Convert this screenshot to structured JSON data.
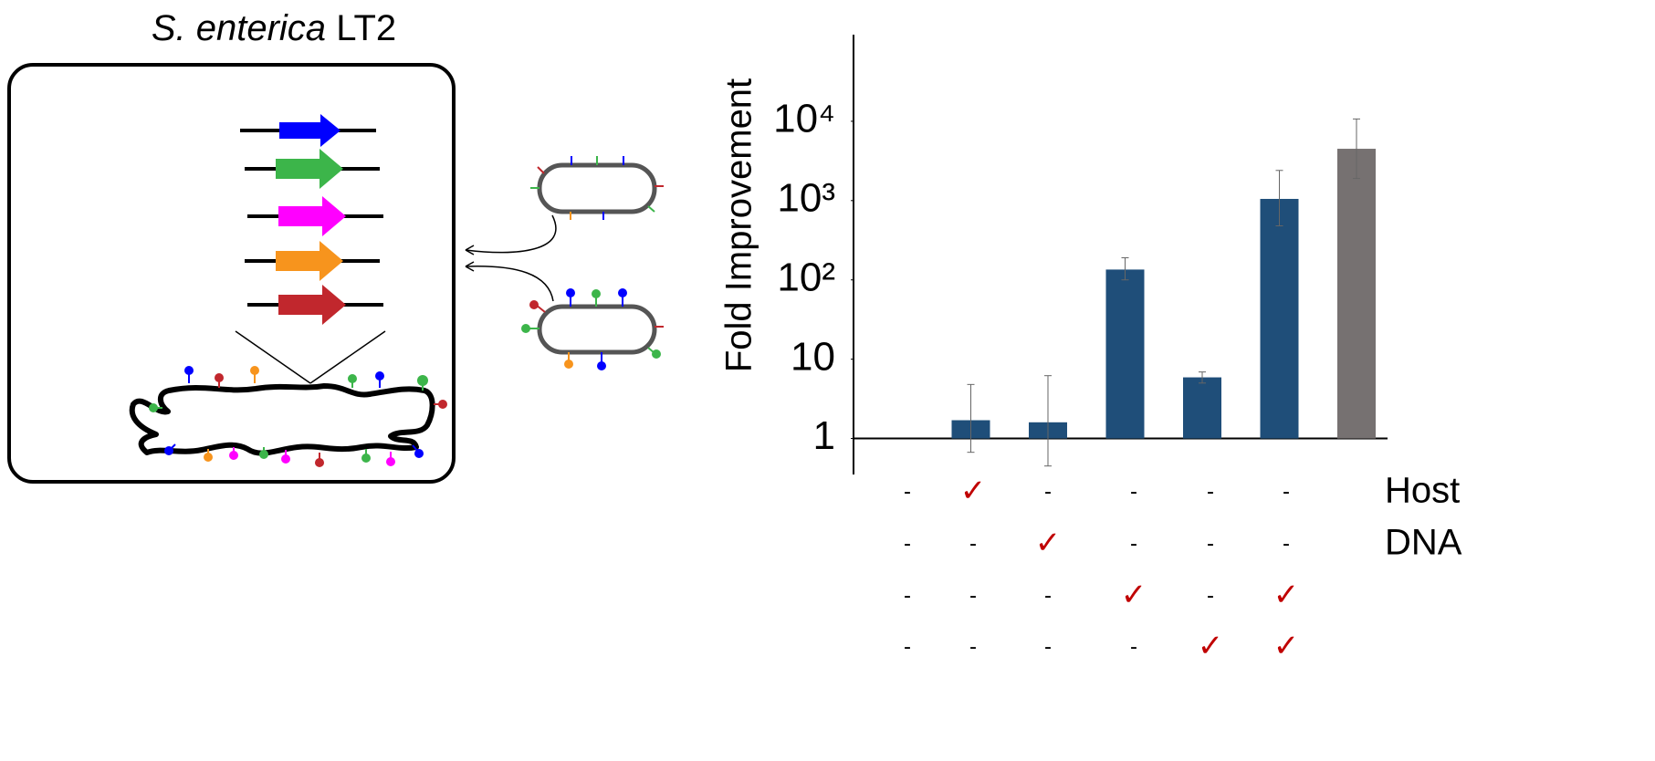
{
  "diagram": {
    "title_italic": "S. enterica",
    "title_rest": "LT2"
  },
  "chart_data": {
    "type": "bar",
    "log_y": true,
    "y_label": "Fold Improvement",
    "categories": [
      null,
      null,
      null,
      null,
      null,
      null,
      null
    ],
    "series": [
      {
        "values": [
          null,
          1.7,
          1.6,
          135,
          5.9,
          1050,
          4500
        ],
        "error_low": [
          null,
          0.67,
          0.45,
          100,
          5.0,
          480,
          1900
        ],
        "error_high": [
          null,
          4.8,
          6.2,
          190,
          6.9,
          2400,
          10700
        ],
        "colors": [
          "#1f4e79",
          "#1f4e79",
          "#1f4e79",
          "#1f4e79",
          "#1f4e79",
          "#1f4e79",
          "#767171"
        ]
      }
    ],
    "ylim": [
      0.3,
      100000
    ],
    "yticks": [
      1,
      10,
      {
        "value": 100,
        "label": "10²"
      },
      {
        "value": 1000,
        "label": "10³"
      },
      {
        "value": 10000,
        "label": "10⁴"
      }
    ],
    "conditions": [
      {
        "label": "Host",
        "marks": [
          "-",
          "✓",
          "-",
          "-",
          "-",
          "-"
        ]
      },
      {
        "label": "DNA",
        "marks": [
          "-",
          "-",
          "✓",
          "-",
          "-",
          "-"
        ]
      },
      {
        "marks": [
          "-",
          "-",
          "-",
          "✓",
          "-",
          "✓"
        ]
      },
      {
        "marks": [
          "-",
          "-",
          "-",
          "-",
          "✓",
          "✓"
        ]
      }
    ]
  }
}
